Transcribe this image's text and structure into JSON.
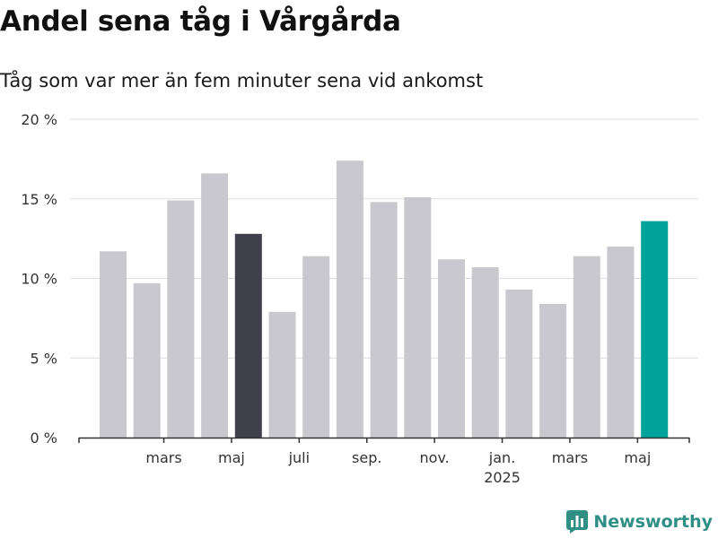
{
  "title": "Andel sena tåg i Vårgårda",
  "subtitle": "Tåg som var mer än fem minuter sena vid ankomst",
  "brand": {
    "name": "Newsworthy",
    "color": "#2f8f85",
    "icon": "bar-chart-logo-icon"
  },
  "chart_data": {
    "type": "bar",
    "ylim": [
      0,
      20
    ],
    "yticks": [
      {
        "value": 0,
        "label": "0 %"
      },
      {
        "value": 5,
        "label": "5 %"
      },
      {
        "value": 10,
        "label": "10 %"
      },
      {
        "value": 15,
        "label": "15 %"
      },
      {
        "value": 20,
        "label": "20 %"
      }
    ],
    "xtick_labels": [
      {
        "index": 1,
        "label": "mars"
      },
      {
        "index": 3,
        "label": "maj"
      },
      {
        "index": 5,
        "label": "juli"
      },
      {
        "index": 7,
        "label": "sep."
      },
      {
        "index": 9,
        "label": "nov."
      },
      {
        "index": 11,
        "label": "jan.",
        "sublabel": "2025"
      },
      {
        "index": 13,
        "label": "mars"
      },
      {
        "index": 15,
        "label": "maj"
      }
    ],
    "values": [
      11.7,
      9.7,
      14.9,
      16.6,
      12.8,
      7.9,
      11.4,
      17.4,
      14.8,
      15.1,
      11.2,
      10.7,
      9.3,
      8.4,
      11.4,
      12.0,
      13.6
    ],
    "highlight": {
      "4": "#403f4c",
      "16": "#00a39a"
    },
    "grid": true,
    "colors": {
      "bar": "#c9c8ce",
      "grid": "#dddddd",
      "axis": "#333333"
    }
  }
}
